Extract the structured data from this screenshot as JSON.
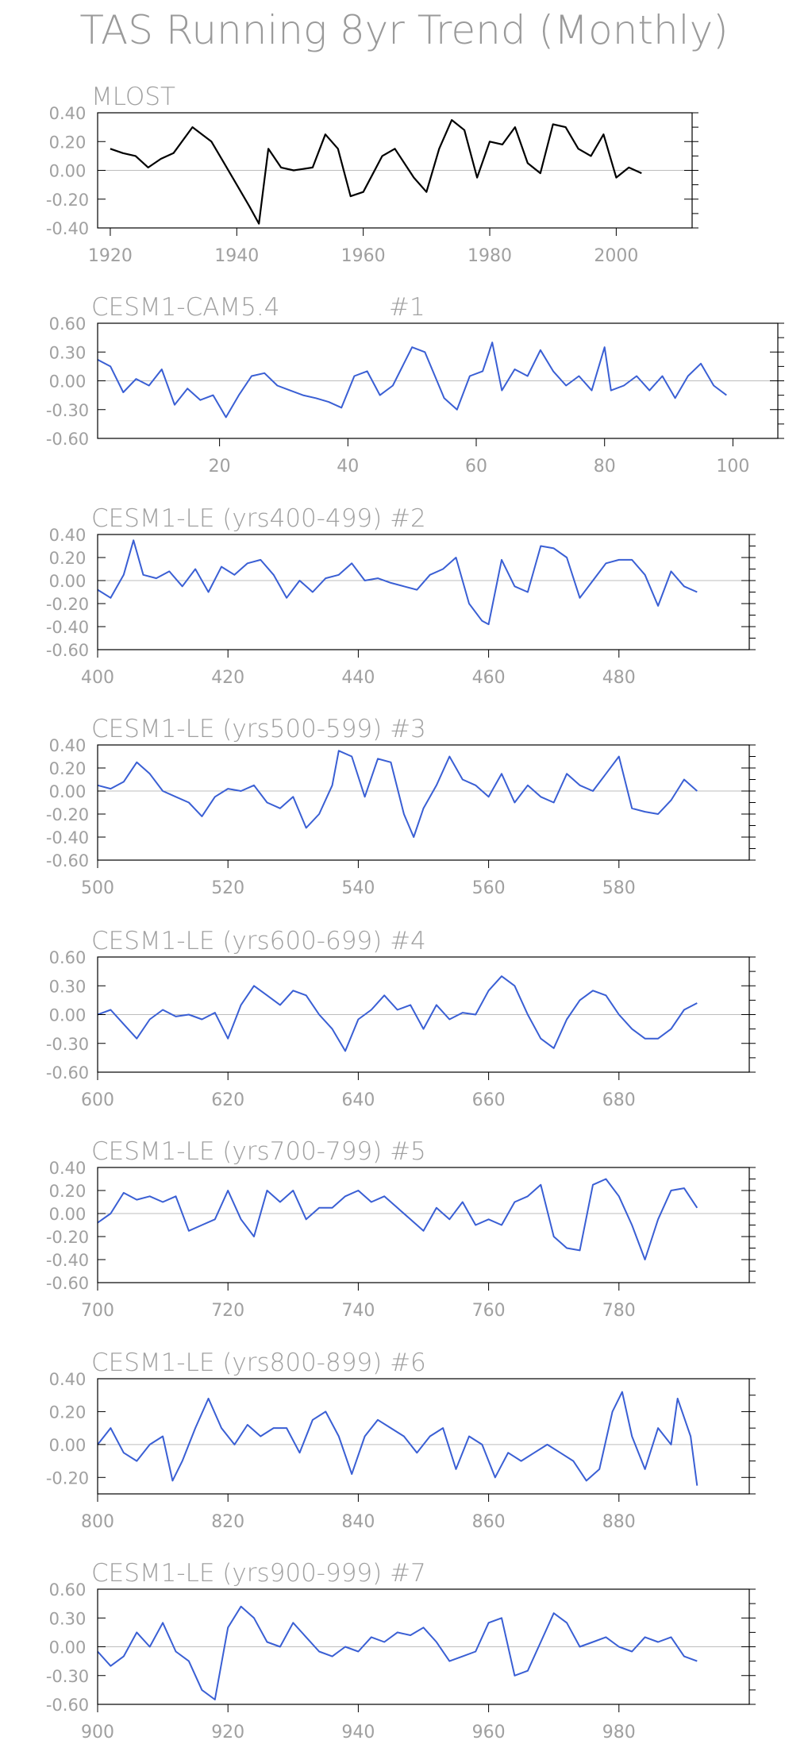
{
  "figure": {
    "title": "TAS Running 8yr Trend (Monthly)"
  },
  "colors": {
    "obs": "#000000",
    "model": "#3a5fd4",
    "zero_line": "#bdbdbd",
    "text": "#a0a0a0"
  },
  "chart_data": [
    {
      "type": "line",
      "title": "MLOST",
      "xlim": [
        1918,
        2012
      ],
      "ylim": [
        -0.4,
        0.4
      ],
      "xticks": [
        1920,
        1940,
        1960,
        1980,
        2000
      ],
      "yticks": [
        "0.40",
        "0.20",
        "0.00",
        "-0.20",
        "-0.40"
      ],
      "ytick_values": [
        0.4,
        0.2,
        0.0,
        -0.2,
        -0.4
      ],
      "line_color": "#000000",
      "series": [
        {
          "x": [
            1920,
            1922,
            1924,
            1926,
            1928,
            1930,
            1933,
            1936,
            1938,
            1940,
            1942,
            1943.5,
            1945,
            1947,
            1949,
            1952,
            1954,
            1956,
            1958,
            1960,
            1963,
            1965,
            1968,
            1970,
            1972,
            1974,
            1976,
            1978,
            1980,
            1982,
            1984,
            1986,
            1988,
            1990,
            1992,
            1994,
            1996,
            1998,
            2000,
            2002,
            2004
          ],
          "y": [
            0.15,
            0.12,
            0.1,
            0.02,
            0.08,
            0.12,
            0.3,
            0.2,
            0.05,
            -0.1,
            -0.25,
            -0.37,
            0.15,
            0.02,
            0.0,
            0.02,
            0.25,
            0.15,
            -0.18,
            -0.15,
            0.1,
            0.15,
            -0.05,
            -0.15,
            0.15,
            0.35,
            0.28,
            -0.05,
            0.2,
            0.18,
            0.3,
            0.05,
            -0.02,
            0.32,
            0.3,
            0.15,
            0.1,
            0.25,
            -0.05,
            0.02,
            -0.02
          ]
        }
      ]
    },
    {
      "type": "line",
      "title": "CESM1-CAM5.4",
      "label": "#1",
      "xlim": [
        1,
        107
      ],
      "ylim": [
        -0.6,
        0.6
      ],
      "xticks": [
        20,
        40,
        60,
        80,
        100
      ],
      "yticks": [
        "0.60",
        "0.30",
        "0.00",
        "-0.30",
        "-0.60"
      ],
      "ytick_values": [
        0.6,
        0.3,
        0.0,
        -0.3,
        -0.6
      ],
      "line_color": "#3a5fd4",
      "series": [
        {
          "x": [
            1,
            3,
            5,
            7,
            9,
            11,
            13,
            15,
            17,
            19,
            21,
            23,
            25,
            27,
            29,
            31,
            33,
            35,
            37,
            39,
            41,
            43,
            45,
            47,
            50,
            52,
            55,
            57,
            59,
            61,
            62.5,
            64,
            66,
            68,
            70,
            72,
            74,
            76,
            78,
            80,
            81,
            83,
            85,
            87,
            89,
            91,
            93,
            95,
            97,
            99
          ],
          "y": [
            0.22,
            0.15,
            -0.12,
            0.02,
            -0.05,
            0.12,
            -0.25,
            -0.08,
            -0.2,
            -0.15,
            -0.38,
            -0.15,
            0.05,
            0.08,
            -0.05,
            -0.1,
            -0.15,
            -0.18,
            -0.22,
            -0.28,
            0.05,
            0.1,
            -0.15,
            -0.05,
            0.35,
            0.3,
            -0.18,
            -0.3,
            0.05,
            0.1,
            0.4,
            -0.1,
            0.12,
            0.05,
            0.32,
            0.1,
            -0.05,
            0.05,
            -0.1,
            0.35,
            -0.1,
            -0.05,
            0.05,
            -0.1,
            0.05,
            -0.18,
            0.05,
            0.18,
            -0.05,
            -0.15
          ]
        }
      ]
    },
    {
      "type": "line",
      "title": "CESM1-LE (yrs400-499) #2",
      "xlim": [
        400,
        500
      ],
      "ylim": [
        -0.6,
        0.4
      ],
      "xticks": [
        400,
        420,
        440,
        460,
        480
      ],
      "yticks": [
        "0.40",
        "0.20",
        "0.00",
        "-0.20",
        "-0.40",
        "-0.60"
      ],
      "ytick_values": [
        0.4,
        0.2,
        0.0,
        -0.2,
        -0.4,
        -0.6
      ],
      "line_color": "#3a5fd4",
      "series": [
        {
          "x": [
            400,
            402,
            404,
            405.5,
            407,
            409,
            411,
            413,
            415,
            417,
            419,
            421,
            423,
            425,
            427,
            429,
            431,
            433,
            435,
            437,
            439,
            441,
            443,
            445,
            447,
            449,
            451,
            453,
            455,
            457,
            459,
            460,
            462,
            464,
            466,
            468,
            470,
            472,
            474,
            476,
            478,
            480,
            482,
            484,
            486,
            488,
            490,
            492
          ],
          "y": [
            -0.08,
            -0.15,
            0.05,
            0.35,
            0.05,
            0.02,
            0.08,
            -0.05,
            0.1,
            -0.1,
            0.12,
            0.05,
            0.15,
            0.18,
            0.05,
            -0.15,
            0.0,
            -0.1,
            0.02,
            0.05,
            0.15,
            0.0,
            0.02,
            -0.02,
            -0.05,
            -0.08,
            0.05,
            0.1,
            0.2,
            -0.2,
            -0.35,
            -0.38,
            0.18,
            -0.05,
            -0.1,
            0.3,
            0.28,
            0.2,
            -0.15,
            0.0,
            0.15,
            0.18,
            0.18,
            0.05,
            -0.22,
            0.08,
            -0.05,
            -0.1
          ]
        }
      ]
    },
    {
      "type": "line",
      "title": "CESM1-LE (yrs500-599) #3",
      "xlim": [
        500,
        600
      ],
      "ylim": [
        -0.6,
        0.4
      ],
      "xticks": [
        500,
        520,
        540,
        560,
        580
      ],
      "yticks": [
        "0.40",
        "0.20",
        "0.00",
        "-0.20",
        "-0.40",
        "-0.60"
      ],
      "ytick_values": [
        0.4,
        0.2,
        0.0,
        -0.2,
        -0.4,
        -0.6
      ],
      "line_color": "#3a5fd4",
      "series": [
        {
          "x": [
            500,
            502,
            504,
            506,
            508,
            510,
            512,
            514,
            516,
            518,
            520,
            522,
            524,
            526,
            528,
            530,
            532,
            534,
            536,
            537,
            539,
            541,
            543,
            545,
            547,
            548.5,
            550,
            552,
            554,
            556,
            558,
            560,
            562,
            564,
            566,
            568,
            570,
            572,
            574,
            576,
            578,
            580,
            582,
            584,
            586,
            588,
            590,
            592
          ],
          "y": [
            0.05,
            0.02,
            0.08,
            0.25,
            0.15,
            0.0,
            -0.05,
            -0.1,
            -0.22,
            -0.05,
            0.02,
            0.0,
            0.05,
            -0.1,
            -0.15,
            -0.05,
            -0.32,
            -0.2,
            0.05,
            0.35,
            0.3,
            -0.05,
            0.28,
            0.25,
            -0.2,
            -0.4,
            -0.15,
            0.05,
            0.3,
            0.1,
            0.05,
            -0.05,
            0.15,
            -0.1,
            0.05,
            -0.05,
            -0.1,
            0.15,
            0.05,
            0.0,
            0.15,
            0.3,
            -0.15,
            -0.18,
            -0.2,
            -0.08,
            0.1,
            0.0
          ]
        }
      ]
    },
    {
      "type": "line",
      "title": "CESM1-LE (yrs600-699) #4",
      "xlim": [
        600,
        700
      ],
      "ylim": [
        -0.6,
        0.6
      ],
      "xticks": [
        600,
        620,
        640,
        660,
        680
      ],
      "yticks": [
        "0.60",
        "0.30",
        "0.00",
        "-0.30",
        "-0.60"
      ],
      "ytick_values": [
        0.6,
        0.3,
        0.0,
        -0.3,
        -0.6
      ],
      "line_color": "#3a5fd4",
      "series": [
        {
          "x": [
            600,
            602,
            604,
            606,
            608,
            610,
            612,
            614,
            616,
            618,
            620,
            622,
            624,
            626,
            628,
            630,
            632,
            634,
            636,
            638,
            640,
            642,
            644,
            646,
            648,
            650,
            652,
            654,
            656,
            658,
            660,
            662,
            664,
            666,
            668,
            670,
            672,
            674,
            676,
            678,
            680,
            682,
            684,
            686,
            688,
            690,
            692
          ],
          "y": [
            0.0,
            0.05,
            -0.1,
            -0.25,
            -0.05,
            0.05,
            -0.02,
            0.0,
            -0.05,
            0.02,
            -0.25,
            0.1,
            0.3,
            0.2,
            0.1,
            0.25,
            0.2,
            0.0,
            -0.15,
            -0.38,
            -0.05,
            0.05,
            0.2,
            0.05,
            0.1,
            -0.15,
            0.1,
            -0.05,
            0.02,
            0.0,
            0.25,
            0.4,
            0.3,
            0.0,
            -0.25,
            -0.35,
            -0.05,
            0.15,
            0.25,
            0.2,
            0.0,
            -0.15,
            -0.25,
            -0.25,
            -0.15,
            0.05,
            0.12
          ]
        }
      ]
    },
    {
      "type": "line",
      "title": "CESM1-LE (yrs700-799) #5",
      "xlim": [
        700,
        800
      ],
      "ylim": [
        -0.6,
        0.4
      ],
      "xticks": [
        700,
        720,
        740,
        760,
        780
      ],
      "yticks": [
        "0.40",
        "0.20",
        "0.00",
        "-0.20",
        "-0.40",
        "-0.60"
      ],
      "ytick_values": [
        0.4,
        0.2,
        0.0,
        -0.2,
        -0.4,
        -0.6
      ],
      "line_color": "#3a5fd4",
      "series": [
        {
          "x": [
            700,
            702,
            704,
            706,
            708,
            710,
            712,
            714,
            716,
            718,
            720,
            722,
            724,
            726,
            728,
            730,
            732,
            734,
            736,
            738,
            740,
            742,
            744,
            746,
            748,
            750,
            752,
            754,
            756,
            758,
            760,
            762,
            764,
            766,
            768,
            770,
            772,
            774,
            776,
            778,
            780,
            782,
            784,
            786,
            788,
            790,
            792
          ],
          "y": [
            -0.08,
            0.0,
            0.18,
            0.12,
            0.15,
            0.1,
            0.15,
            -0.15,
            -0.1,
            -0.05,
            0.2,
            -0.05,
            -0.2,
            0.2,
            0.1,
            0.2,
            -0.05,
            0.05,
            0.05,
            0.15,
            0.2,
            0.1,
            0.15,
            0.05,
            -0.05,
            -0.15,
            0.05,
            -0.05,
            0.1,
            -0.1,
            -0.05,
            -0.1,
            0.1,
            0.15,
            0.25,
            -0.2,
            -0.3,
            -0.32,
            0.25,
            0.3,
            0.15,
            -0.1,
            -0.4,
            -0.05,
            0.2,
            0.22,
            0.05
          ]
        }
      ]
    },
    {
      "type": "line",
      "title": "CESM1-LE (yrs800-899) #6",
      "xlim": [
        800,
        900
      ],
      "ylim": [
        -0.3,
        0.4
      ],
      "xticks": [
        800,
        820,
        840,
        860,
        880
      ],
      "yticks": [
        "0.40",
        "0.20",
        "0.00",
        "-0.20"
      ],
      "ytick_values": [
        0.4,
        0.2,
        0.0,
        -0.2
      ],
      "line_color": "#3a5fd4",
      "series": [
        {
          "x": [
            800,
            802,
            804,
            806,
            808,
            810,
            811.5,
            813,
            815,
            817,
            819,
            821,
            823,
            825,
            827,
            829,
            831,
            833,
            835,
            837,
            839,
            841,
            843,
            845,
            847,
            849,
            851,
            853,
            855,
            857,
            859,
            861,
            863,
            865,
            867,
            869,
            871,
            873,
            875,
            877,
            879,
            880.5,
            882,
            884,
            886,
            888,
            889,
            891,
            892
          ],
          "y": [
            0.0,
            0.1,
            -0.05,
            -0.1,
            0.0,
            0.05,
            -0.22,
            -0.1,
            0.1,
            0.28,
            0.1,
            0.0,
            0.12,
            0.05,
            0.1,
            0.1,
            -0.05,
            0.15,
            0.2,
            0.05,
            -0.18,
            0.05,
            0.15,
            0.1,
            0.05,
            -0.05,
            0.05,
            0.1,
            -0.15,
            0.05,
            0.0,
            -0.2,
            -0.05,
            -0.1,
            -0.05,
            0.0,
            -0.05,
            -0.1,
            -0.22,
            -0.15,
            0.2,
            0.32,
            0.05,
            -0.15,
            0.1,
            0.0,
            0.28,
            0.05,
            -0.25
          ]
        }
      ]
    },
    {
      "type": "line",
      "title": "CESM1-LE (yrs900-999) #7",
      "xlim": [
        900,
        1000
      ],
      "ylim": [
        -0.6,
        0.6
      ],
      "xticks": [
        900,
        920,
        940,
        960,
        980
      ],
      "yticks": [
        "0.60",
        "0.30",
        "0.00",
        "-0.30",
        "-0.60"
      ],
      "ytick_values": [
        0.6,
        0.3,
        0.0,
        -0.3,
        -0.6
      ],
      "line_color": "#3a5fd4",
      "series": [
        {
          "x": [
            900,
            902,
            904,
            906,
            908,
            910,
            912,
            914,
            916,
            918,
            920,
            922,
            924,
            926,
            928,
            930,
            932,
            934,
            936,
            938,
            940,
            942,
            944,
            946,
            948,
            950,
            952,
            954,
            956,
            958,
            960,
            962,
            964,
            966,
            968,
            970,
            972,
            974,
            976,
            978,
            980,
            982,
            984,
            986,
            988,
            990,
            992
          ],
          "y": [
            -0.05,
            -0.2,
            -0.1,
            0.15,
            0.0,
            0.25,
            -0.05,
            -0.15,
            -0.45,
            -0.55,
            0.2,
            0.42,
            0.3,
            0.05,
            0.0,
            0.25,
            0.1,
            -0.05,
            -0.1,
            0.0,
            -0.05,
            0.1,
            0.05,
            0.15,
            0.12,
            0.2,
            0.05,
            -0.15,
            -0.1,
            -0.05,
            0.25,
            0.3,
            -0.3,
            -0.25,
            0.05,
            0.35,
            0.25,
            0.0,
            0.05,
            0.1,
            0.0,
            -0.05,
            0.1,
            0.05,
            0.1,
            -0.1,
            -0.15
          ]
        }
      ]
    }
  ]
}
